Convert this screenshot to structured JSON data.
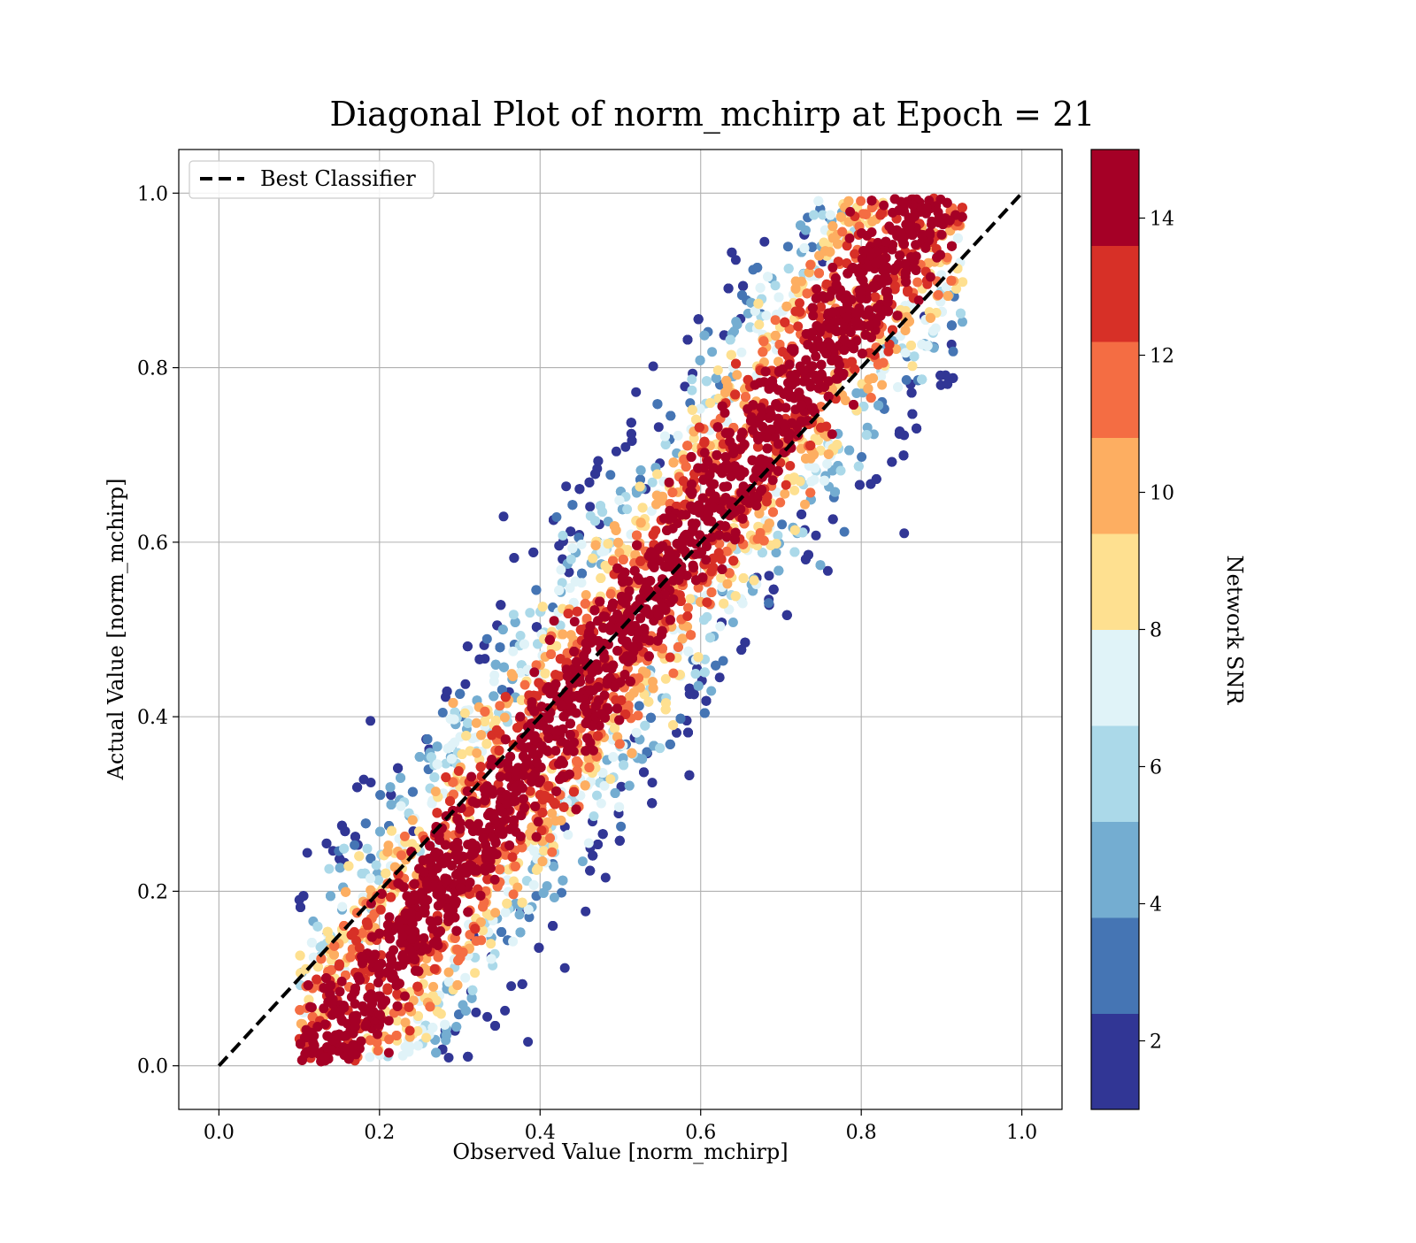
{
  "chart_data": {
    "type": "scatter",
    "title": "Diagonal Plot of norm_mchirp at Epoch = 21",
    "xlabel": "Observed Value [norm_mchirp]",
    "ylabel": "Actual Value [norm_mchirp]",
    "xlim": [
      -0.05,
      1.05
    ],
    "ylim": [
      -0.05,
      1.05
    ],
    "x_ticks": [
      "0.0",
      "0.2",
      "0.4",
      "0.6",
      "0.8",
      "1.0"
    ],
    "y_ticks": [
      "0.0",
      "0.2",
      "0.4",
      "0.6",
      "0.8",
      "1.0"
    ],
    "grid": true,
    "legend": {
      "position": "top-left",
      "entries": [
        "Best Classifier"
      ]
    },
    "reference_line": {
      "name": "Best Classifier",
      "x": [
        0.0,
        1.0
      ],
      "y": [
        0.0,
        1.0
      ],
      "style": "dashed",
      "color": "#000000"
    },
    "colorbar": {
      "label": "Network SNR",
      "range": [
        1,
        15
      ],
      "ticks": [
        "2",
        "4",
        "6",
        "8",
        "10",
        "12",
        "14"
      ],
      "colors": [
        "#313695",
        "#4575b4",
        "#74add1",
        "#abd9e9",
        "#e0f3f8",
        "#fee090",
        "#fdae61",
        "#f46d43",
        "#d73027",
        "#a50026"
      ]
    },
    "point_clusters": [
      {
        "region": "diagonal band (y ≈ x, width ≈ 0.15)",
        "snr": "≥ 14",
        "color": "#a50026"
      },
      {
        "region": "band edges",
        "snr": "10–13",
        "color": "#f46d43"
      },
      {
        "region": "upper-left wing (x 0.2–0.6, y 0.6–1.0)",
        "snr": "2–9",
        "color": "#abd9e9"
      },
      {
        "region": "lower-right wing (x 0.35–0.75, y 0.0–0.4)",
        "snr": "2–10",
        "color": "#fee090"
      }
    ]
  }
}
